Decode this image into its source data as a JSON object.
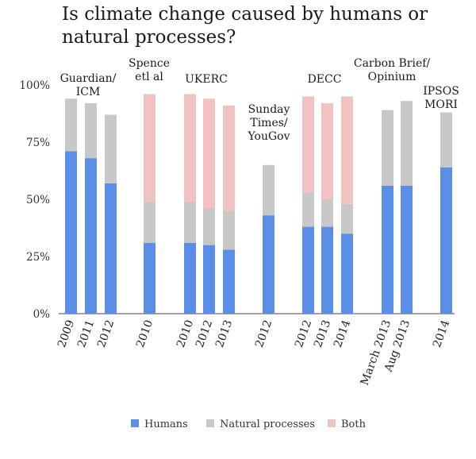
{
  "chart_data": {
    "type": "bar",
    "stacked": true,
    "title": "Is climate change caused by humans or natural processes?",
    "ylim": [
      0,
      100
    ],
    "yticks": [
      "0%",
      "25%",
      "50%",
      "75%",
      "100%"
    ],
    "ytick_values": [
      0,
      25,
      50,
      75,
      100
    ],
    "grid": false,
    "legend_position": "bottom",
    "series": [
      {
        "name": "Humans",
        "color": "#5b8ee6"
      },
      {
        "name": "Natural processes",
        "color": "#c8c8c8"
      },
      {
        "name": "Both",
        "color": "#f2c1c1"
      }
    ],
    "groups": [
      {
        "label": "Guardian/\nICM",
        "bars": [
          {
            "x": "2009",
            "humans": 71,
            "natural": 23,
            "both": 0
          },
          {
            "x": "2011",
            "humans": 68,
            "natural": 24,
            "both": 0
          },
          {
            "x": "2012",
            "humans": 57,
            "natural": 30,
            "both": 0
          }
        ]
      },
      {
        "label": "Spence\netl al",
        "bars": [
          {
            "x": "2010",
            "humans": 31,
            "natural": 18,
            "both": 47
          }
        ]
      },
      {
        "label": "UKERC",
        "bars": [
          {
            "x": "2010",
            "humans": 31,
            "natural": 18,
            "both": 47
          },
          {
            "x": "2012",
            "humans": 30,
            "natural": 16,
            "both": 48
          },
          {
            "x": "2013",
            "humans": 28,
            "natural": 17,
            "both": 46
          }
        ]
      },
      {
        "label": "Sunday\nTimes/\nYouGov",
        "bars": [
          {
            "x": "2012",
            "humans": 43,
            "natural": 22,
            "both": 0
          }
        ]
      },
      {
        "label": "DECC",
        "bars": [
          {
            "x": "2012",
            "humans": 38,
            "natural": 15,
            "both": 42
          },
          {
            "x": "2013",
            "humans": 38,
            "natural": 12,
            "both": 42
          },
          {
            "x": "2014",
            "humans": 35,
            "natural": 13,
            "both": 47
          }
        ]
      },
      {
        "label": "Carbon Brief/\nOpinium",
        "bars": [
          {
            "x": "March 2013",
            "humans": 56,
            "natural": 33,
            "both": 0
          },
          {
            "x": "Aug 2013",
            "humans": 56,
            "natural": 37,
            "both": 0
          }
        ]
      },
      {
        "label": "IPSOS\nMORI",
        "bars": [
          {
            "x": "2014",
            "humans": 64,
            "natural": 24,
            "both": 0
          }
        ]
      }
    ]
  }
}
